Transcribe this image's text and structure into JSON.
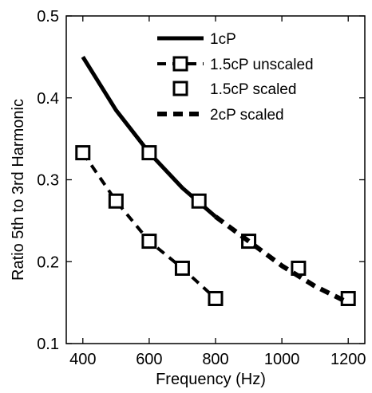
{
  "chart_data": {
    "type": "line",
    "title": "",
    "xlabel": "Frequency (Hz)",
    "ylabel": "Ratio 5th to 3rd Harmonic",
    "xlim": [
      350,
      1250
    ],
    "ylim": [
      0.1,
      0.5
    ],
    "x_ticks": [
      400,
      600,
      800,
      1000,
      1200
    ],
    "y_ticks": [
      0.1,
      0.2,
      0.3,
      0.4,
      0.5
    ],
    "grid": false,
    "legend_position": "top-right",
    "series": [
      {
        "name": "1cP",
        "style": "solid",
        "marker": "none",
        "color": "#000000",
        "x": [
          400,
          500,
          600,
          700,
          800
        ],
        "y": [
          0.45,
          0.385,
          0.333,
          0.29,
          0.255
        ]
      },
      {
        "name": "1.5cP unscaled",
        "style": "dashed",
        "marker": "square",
        "color": "#000000",
        "x": [
          400,
          500,
          600,
          700,
          800
        ],
        "y": [
          0.333,
          0.274,
          0.225,
          0.192,
          0.155
        ]
      },
      {
        "name": "1.5cP scaled",
        "style": "none",
        "marker": "square",
        "color": "#000000",
        "x": [
          600,
          750,
          900,
          1050,
          1200
        ],
        "y": [
          0.333,
          0.274,
          0.225,
          0.192,
          0.155
        ]
      },
      {
        "name": "2cP scaled",
        "style": "dashed-thick",
        "marker": "none",
        "color": "#000000",
        "x": [
          800,
          900,
          1000,
          1100,
          1200
        ],
        "y": [
          0.255,
          0.225,
          0.195,
          0.17,
          0.15
        ]
      }
    ]
  }
}
